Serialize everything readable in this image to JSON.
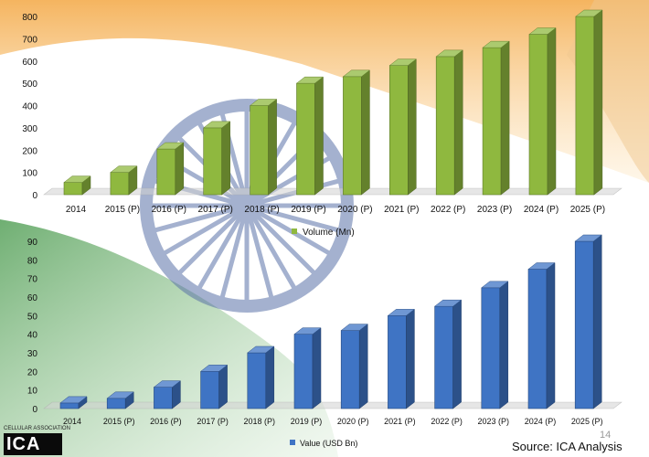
{
  "colors": {
    "volume": "#8fb83f",
    "value": "#3f74c4",
    "flag_saffron": "#f6b24a",
    "flag_green": "#4b9a4a",
    "chakra": "#5b73a8"
  },
  "footer": {
    "association_text": "CELLULAR ASSOCIATION",
    "logo_text": "ICA",
    "page_number": "14",
    "source": "Source: ICA Analysis"
  },
  "chart_data": [
    {
      "type": "bar",
      "title": "",
      "xlabel": "",
      "ylabel": "",
      "categories": [
        "2014",
        "2015 (P)",
        "2016 (P)",
        "2017 (P)",
        "2018 (P)",
        "2019 (P)",
        "2020 (P)",
        "2021 (P)",
        "2022 (P)",
        "2023 (P)",
        "2024 (P)",
        "2025 (P)"
      ],
      "series": [
        {
          "name": "Volume (Mn)",
          "values": [
            55,
            100,
            205,
            300,
            400,
            500,
            530,
            580,
            620,
            660,
            720,
            800
          ]
        }
      ],
      "ylim": [
        0,
        800
      ],
      "yticks": [
        0,
        100,
        200,
        300,
        400,
        500,
        600,
        700,
        800
      ],
      "legend": "bottom-center",
      "grid": false
    },
    {
      "type": "bar",
      "title": "",
      "xlabel": "",
      "ylabel": "",
      "categories": [
        "2014",
        "2015 (P)",
        "2016 (P)",
        "2017 (P)",
        "2018 (P)",
        "2019 (P)",
        "2020 (P)",
        "2021 (P)",
        "2022 (P)",
        "2023 (P)",
        "2024 (P)",
        "2025 (P)"
      ],
      "series": [
        {
          "name": "Value (USD Bn)",
          "values": [
            3,
            5.5,
            11.5,
            20,
            30,
            40,
            42,
            50,
            55,
            65,
            75,
            90
          ]
        }
      ],
      "ylim": [
        0,
        90
      ],
      "yticks": [
        0,
        10,
        20,
        30,
        40,
        50,
        60,
        70,
        80,
        90
      ],
      "legend": "bottom-center",
      "grid": false
    }
  ]
}
